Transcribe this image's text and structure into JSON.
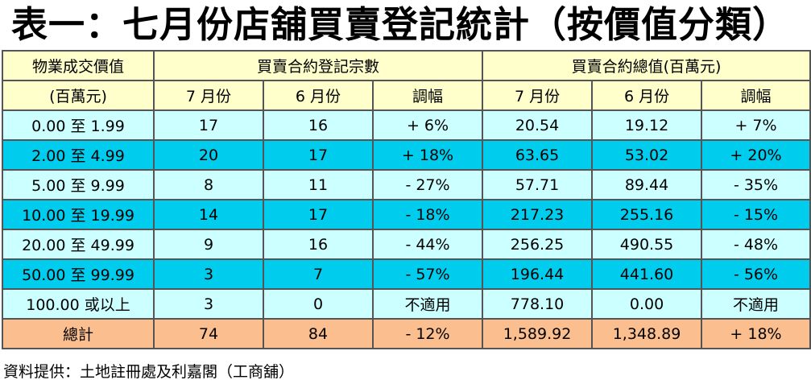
{
  "title": "表一：七月份店舖買賣登記統計（按價值分類）",
  "header": {
    "category_label_1": "物業成交價值",
    "category_label_2": "(百萬元)",
    "group_count": "買賣合約登記宗數",
    "group_value": "買賣合約總值(百萬元)",
    "col_july": "7 月份",
    "col_june": "6 月份",
    "col_change": "調幅"
  },
  "rows": [
    {
      "range": "0.00 至 1.99",
      "count_jul": "17",
      "count_jun": "16",
      "count_chg": "+ 6%",
      "val_jul": "20.54",
      "val_jun": "19.12",
      "val_chg": "+ 7%"
    },
    {
      "range": "2.00 至 4.99",
      "count_jul": "20",
      "count_jun": "17",
      "count_chg": "+ 18%",
      "val_jul": "63.65",
      "val_jun": "53.02",
      "val_chg": "+ 20%"
    },
    {
      "range": "5.00 至 9.99",
      "count_jul": "8",
      "count_jun": "11",
      "count_chg": "- 27%",
      "val_jul": "57.71",
      "val_jun": "89.44",
      "val_chg": "- 35%"
    },
    {
      "range": "10.00 至 19.99",
      "count_jul": "14",
      "count_jun": "17",
      "count_chg": "- 18%",
      "val_jul": "217.23",
      "val_jun": "255.16",
      "val_chg": "- 15%"
    },
    {
      "range": "20.00 至 49.99",
      "count_jul": "9",
      "count_jun": "16",
      "count_chg": "- 44%",
      "val_jul": "256.25",
      "val_jun": "490.55",
      "val_chg": "- 48%"
    },
    {
      "range": "50.00 至 99.99",
      "count_jul": "3",
      "count_jun": "7",
      "count_chg": "- 57%",
      "val_jul": "196.44",
      "val_jun": "441.60",
      "val_chg": "- 56%"
    },
    {
      "range": "100.00 或以上",
      "count_jul": "3",
      "count_jun": "0",
      "count_chg": "不適用",
      "val_jul": "778.10",
      "val_jun": "0.00",
      "val_chg": "不適用"
    }
  ],
  "total": {
    "label": "總計",
    "count_jul": "74",
    "count_jun": "84",
    "count_chg": "- 12%",
    "val_jul": "1,589.92",
    "val_jun": "1,348.89",
    "val_chg": "+ 18%"
  },
  "source": "資料提供：土地註冊處及利嘉閣（工商舖）",
  "colors": {
    "header_bg": "#ffffcc",
    "row_light": "#ccffff",
    "row_dark": "#00ccee",
    "total_bg": "#fbbe8e",
    "border": "#555555"
  }
}
